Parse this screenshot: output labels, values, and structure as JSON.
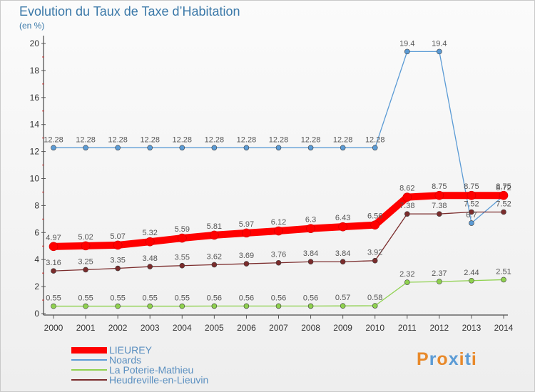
{
  "header": {
    "title": "Evolution du Taux de Taxe d’Habitation",
    "unit": "(en %)"
  },
  "brand": {
    "letters": [
      "P",
      "r",
      "o",
      "x",
      "i",
      "t",
      "i"
    ],
    "colors": [
      "#e8892a",
      "#5b9bd5",
      "#e8892a",
      "#5b9bd5",
      "#e8892a",
      "#5b9bd5",
      "#e8892a"
    ]
  },
  "chart_data": {
    "type": "line",
    "title": "Evolution du Taux de Taxe d’Habitation",
    "ylabel": "(en %)",
    "xlabel": "",
    "ylim": [
      0,
      20
    ],
    "yticks": [
      "0",
      "2",
      "4",
      "6",
      "8",
      "10",
      "12",
      "14",
      "16",
      "18",
      "20"
    ],
    "x": [
      "2000",
      "2001",
      "2002",
      "2003",
      "2004",
      "2005",
      "2006",
      "2007",
      "2008",
      "2009",
      "2010",
      "2011",
      "2012",
      "2013",
      "2014"
    ],
    "grid": false,
    "legend": "bottom-left",
    "series": [
      {
        "name": "LIEUREY",
        "color": "#ff0000",
        "values": [
          4.97,
          5.02,
          5.07,
          5.32,
          5.59,
          5.81,
          5.97,
          6.12,
          6.3,
          6.43,
          6.56,
          8.62,
          8.75,
          8.75,
          8.75
        ],
        "labels": [
          "4.97",
          "5.02",
          "5.07",
          "5.32",
          "5.59",
          "5.81",
          "5.97",
          "6.12",
          "6.3",
          "6.43",
          "6.56",
          "8.62",
          "8.75",
          "8.75",
          "8.75"
        ]
      },
      {
        "name": "Noards",
        "color": "#5b9bd5",
        "values": [
          12.28,
          12.28,
          12.28,
          12.28,
          12.28,
          12.28,
          12.28,
          12.28,
          12.28,
          12.28,
          12.28,
          19.4,
          19.4,
          6.7,
          8.72
        ],
        "labels": [
          "12.28",
          "12.28",
          "12.28",
          "12.28",
          "12.28",
          "12.28",
          "12.28",
          "12.28",
          "12.28",
          "12.28",
          "12.28",
          "19.4",
          "19.4",
          "6.7",
          "8.72"
        ]
      },
      {
        "name": "La Poterie-Mathieu",
        "color": "#8fd14f",
        "values": [
          0.55,
          0.55,
          0.55,
          0.55,
          0.55,
          0.56,
          0.56,
          0.56,
          0.56,
          0.57,
          0.58,
          2.32,
          2.37,
          2.44,
          2.51
        ],
        "labels": [
          "0.55",
          "0.55",
          "0.55",
          "0.55",
          "0.55",
          "0.56",
          "0.56",
          "0.56",
          "0.56",
          "0.57",
          "0.58",
          "2.32",
          "2.37",
          "2.44",
          "2.51"
        ]
      },
      {
        "name": "Heudreville-en-Lieuvin",
        "color": "#7b2c2c",
        "values": [
          3.16,
          3.25,
          3.35,
          3.48,
          3.55,
          3.62,
          3.69,
          3.76,
          3.84,
          3.84,
          3.92,
          7.38,
          7.38,
          7.52,
          7.52
        ],
        "labels": [
          "3.16",
          "3.25",
          "3.35",
          "3.48",
          "3.55",
          "3.62",
          "3.69",
          "3.76",
          "3.84",
          "3.84",
          "3.92",
          "7.38",
          "7.38",
          "7.52",
          "7.52"
        ]
      }
    ]
  }
}
